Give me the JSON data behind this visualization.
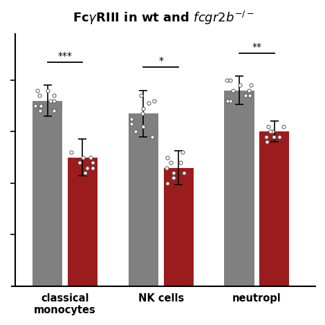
{
  "groups": [
    "classical\nmonocytes",
    "NK cells",
    "neutropl"
  ],
  "wt_means": [
    0.72,
    0.67,
    0.76
  ],
  "ko_means": [
    0.5,
    0.46,
    0.6
  ],
  "wt_errors": [
    0.06,
    0.09,
    0.055
  ],
  "ko_errors": [
    0.07,
    0.065,
    0.04
  ],
  "wt_color": "#808080",
  "ko_color": "#9b1c1c",
  "significance": [
    "***",
    "*",
    "**"
  ],
  "bar_width": 0.28,
  "group_centers": [
    0.45,
    1.35,
    2.25
  ],
  "bar_sep": 0.05,
  "ylim": [
    0.0,
    0.98
  ],
  "ytick_positions": [
    0.2,
    0.4,
    0.6,
    0.8
  ],
  "wt_scatter": [
    [
      0.68,
      0.7,
      0.72,
      0.74,
      0.76,
      0.7,
      0.68,
      0.72,
      0.74,
      0.76
    ],
    [
      0.6,
      0.63,
      0.67,
      0.71,
      0.74,
      0.62,
      0.65,
      0.69,
      0.72,
      0.58
    ],
    [
      0.72,
      0.74,
      0.76,
      0.78,
      0.8,
      0.74,
      0.76,
      0.72,
      0.78,
      0.8
    ]
  ],
  "ko_scatter": [
    [
      0.44,
      0.46,
      0.48,
      0.5,
      0.52,
      0.46,
      0.48,
      0.5
    ],
    [
      0.4,
      0.42,
      0.44,
      0.46,
      0.48,
      0.5,
      0.42,
      0.52,
      0.44,
      0.48
    ],
    [
      0.56,
      0.58,
      0.6,
      0.62,
      0.58,
      0.6,
      0.62,
      0.58
    ]
  ],
  "background_color": "#ffffff",
  "fig_width": 4.7,
  "fig_height": 4.7,
  "dpi": 100
}
